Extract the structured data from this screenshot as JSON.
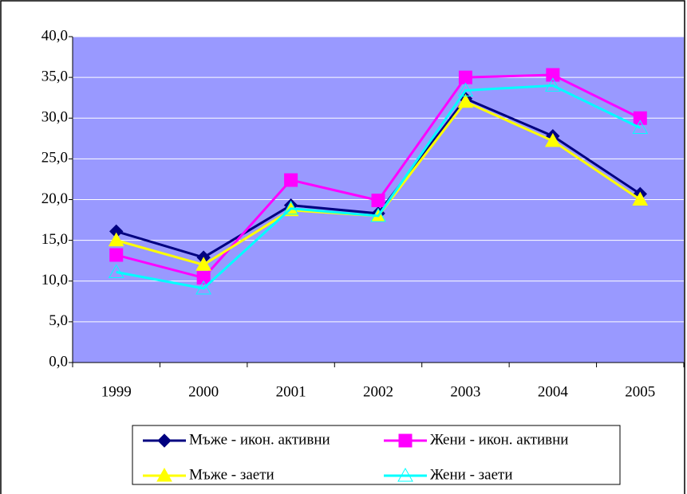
{
  "chart_data": {
    "type": "line",
    "categories": [
      "1999",
      "2000",
      "2001",
      "2002",
      "2003",
      "2004",
      "2005"
    ],
    "series": [
      {
        "name": "Мъже - икон. активни",
        "color": "#000080",
        "marker": "diamond",
        "values": [
          16.1,
          12.9,
          19.3,
          18.3,
          32.4,
          27.8,
          20.7
        ]
      },
      {
        "name": "Жени - икон. активни",
        "color": "#ff00ff",
        "marker": "square",
        "values": [
          13.2,
          10.4,
          22.4,
          19.9,
          35.0,
          35.3,
          30.0
        ]
      },
      {
        "name": "Мъже - заети",
        "color": "#ffff00",
        "marker": "triangle",
        "values": [
          15.0,
          12.0,
          18.7,
          18.0,
          32.0,
          27.2,
          20.0
        ]
      },
      {
        "name": "Жени - заети",
        "color": "#00ffff",
        "marker": "open-triangle",
        "values": [
          11.1,
          9.1,
          18.9,
          18.0,
          33.4,
          34.0,
          28.8
        ]
      }
    ],
    "ylim": [
      0,
      40
    ],
    "yticks": [
      {
        "value": 0,
        "label": "0,0"
      },
      {
        "value": 5,
        "label": "5,0"
      },
      {
        "value": 10,
        "label": "10,0"
      },
      {
        "value": 15,
        "label": "15,0"
      },
      {
        "value": 20,
        "label": "20,0"
      },
      {
        "value": 25,
        "label": "25,0"
      },
      {
        "value": 30,
        "label": "30,0"
      },
      {
        "value": 35,
        "label": "35,0"
      },
      {
        "value": 40,
        "label": "40,0"
      }
    ],
    "grid": true,
    "plot_background": "#9999ff",
    "legend": "bottom"
  }
}
